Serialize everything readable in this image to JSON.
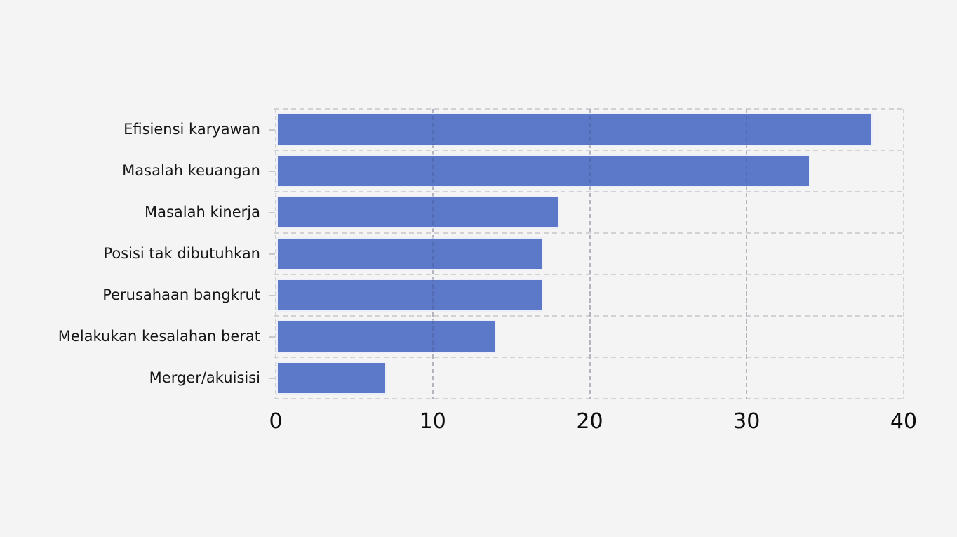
{
  "chart_data": {
    "type": "bar",
    "orientation": "horizontal",
    "title": "",
    "categories": [
      "Efisiensi karyawan",
      "Masalah keuangan",
      "Masalah kinerja",
      "Posisi tak dibutuhkan",
      "Perusahaan bangkrut",
      "Melakukan kesalahan berat",
      "Merger/akuisisi"
    ],
    "values": [
      38,
      34,
      18,
      17,
      17,
      14,
      7
    ],
    "x_ticks": [
      "0",
      "10",
      "20",
      "30",
      "40"
    ],
    "x_tick_values": [
      0,
      10,
      20,
      30,
      40
    ],
    "xlim": [
      0,
      40
    ],
    "xlabel": "",
    "ylabel": "",
    "legend_position": "none",
    "grid": "dashed",
    "colors": {
      "bar_fill": "#5c78c8",
      "bar_border": "#eceff7",
      "gridline": "#d2d2d4",
      "background": "#f4f4f5",
      "text": "#161616"
    }
  }
}
